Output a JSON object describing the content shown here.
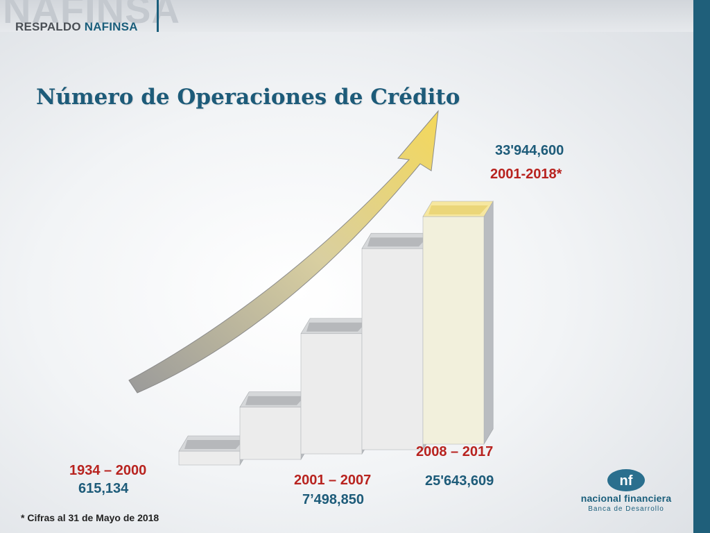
{
  "header": {
    "watermark": "NAFINSA",
    "subtitle_part1": "RESPALDO ",
    "subtitle_part2": "NAFINSA"
  },
  "colors": {
    "title": "#1d5b79",
    "period_label": "#b8231f",
    "value_label": "#1d5b79",
    "accent_bar": "#1f5f7a"
  },
  "chart_data": {
    "type": "bar",
    "title": "Número de Operaciones de Crédito",
    "categories": [
      "1934 – 2000",
      "2001 – 2007",
      "2008 – 2017",
      "2001-2018*"
    ],
    "values": [
      615134,
      7498850,
      25643609,
      33944600
    ],
    "value_labels": [
      "615,134",
      "7’498,850",
      "25'643,609",
      "33'944,600"
    ],
    "xlabel": "",
    "ylabel": "",
    "grid": false,
    "legend": "none"
  },
  "footnote": "* Cifras al 31 de Mayo de 2018",
  "logo": {
    "name": "nacional financiera",
    "tagline": "Banca de Desarrollo",
    "mark_icon": "nf-monogram-icon"
  }
}
